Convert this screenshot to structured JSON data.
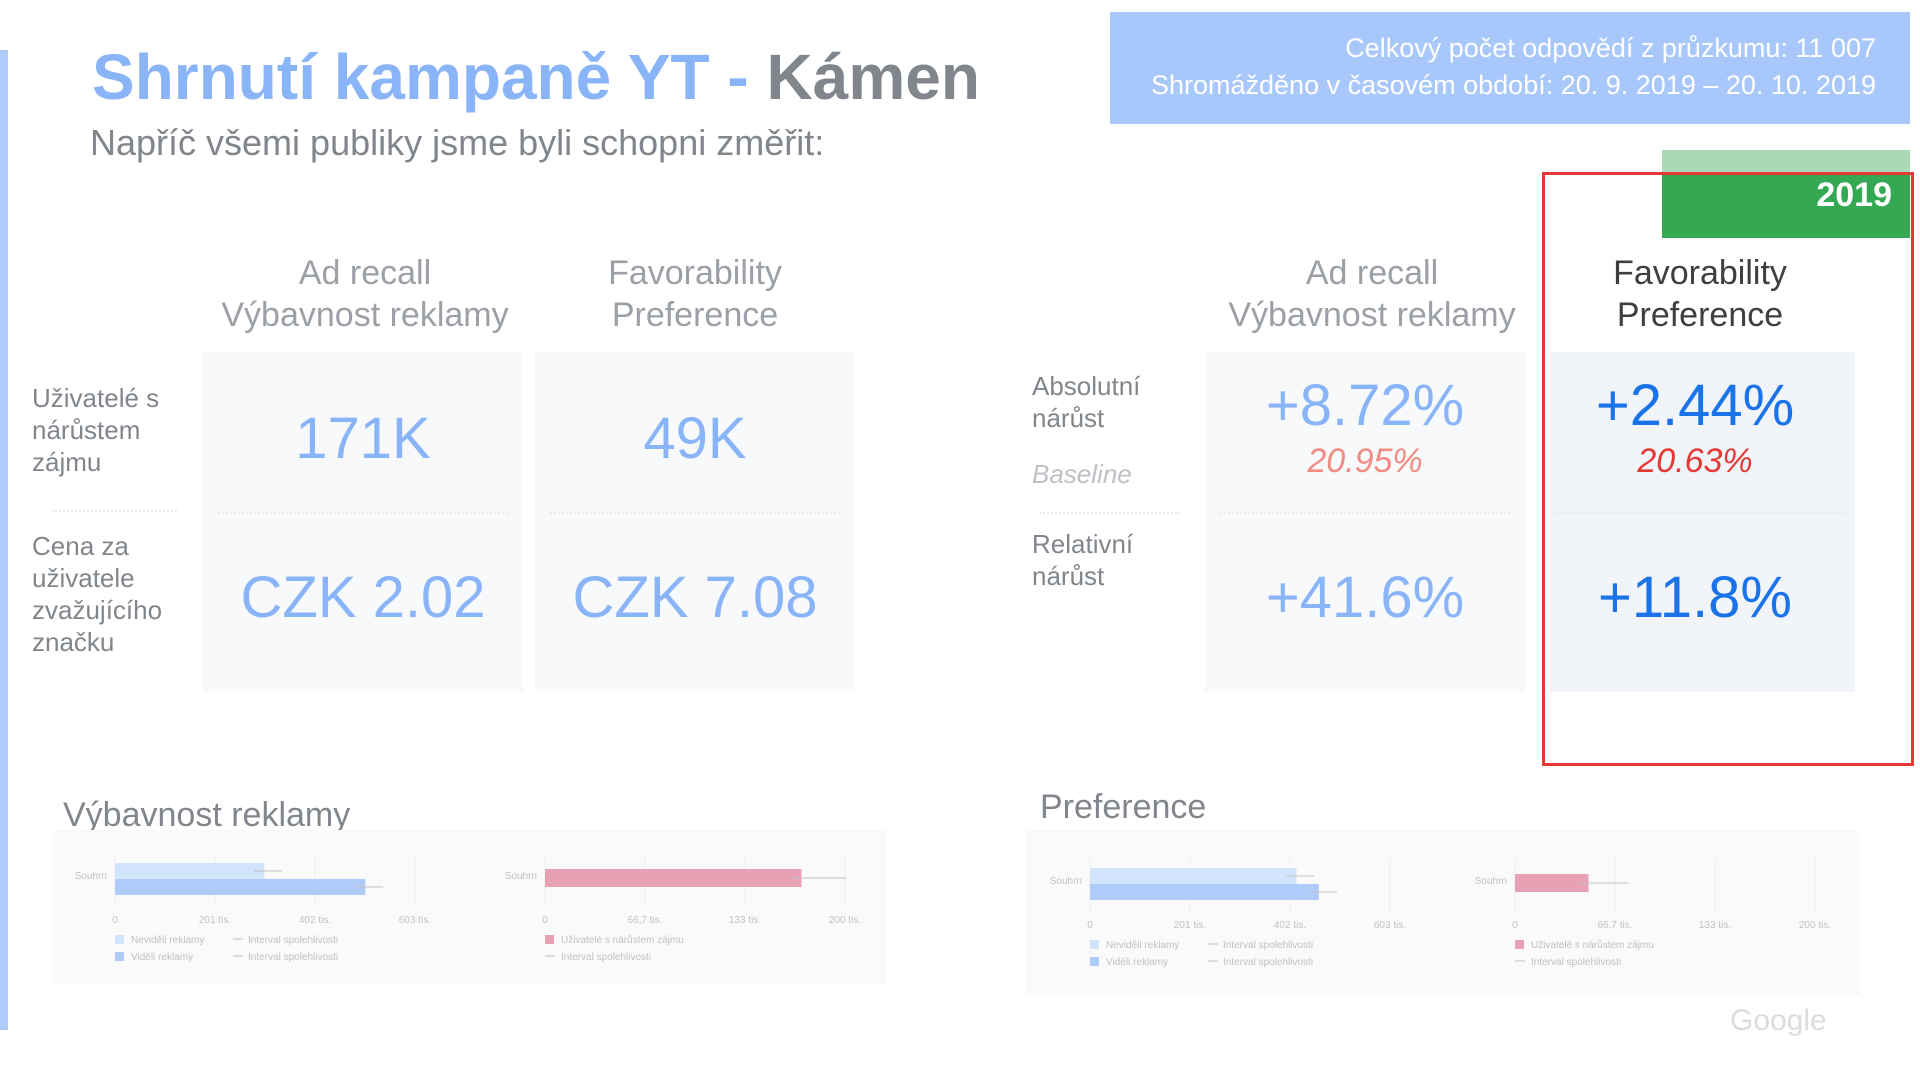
{
  "header": {
    "title_part1": "Shrnutí kampaně YT -",
    "title_part2": "Kámen",
    "subtitle": "Napříč všemi publiky jsme byli schopni změřit:"
  },
  "info": {
    "line1": "Celkový počet odpovědí z průzkumu: 11 007",
    "line2": "Shromážděno v časovém období: 20. 9. 2019 – 20. 10. 2019"
  },
  "year_tab": "2019",
  "left_table": {
    "col1": {
      "line1": "Ad recall",
      "line2": "Výbavnost reklamy"
    },
    "col2": {
      "line1": "Favorability",
      "line2": "Preference"
    },
    "row1_label": [
      "Uživatelé s",
      "nárůstem",
      "zájmu"
    ],
    "row2_label": [
      "Cena za",
      "uživatele",
      "zvažujícího",
      "značku"
    ],
    "row1_values": [
      "171K",
      "49K"
    ],
    "row2_values": [
      "CZK 2.02",
      "CZK 7.08"
    ]
  },
  "right_table": {
    "col1": {
      "line1": "Ad recall",
      "line2": "Výbavnost reklamy"
    },
    "col2": {
      "line1": "Favorability",
      "line2": "Preference"
    },
    "row1_label": [
      "Absolutní",
      "nárůst"
    ],
    "baseline_label": "Baseline",
    "row2_label": [
      "Relativní",
      "nárůst"
    ],
    "abs_values": [
      "+8.72%",
      "+2.44%"
    ],
    "baseline_values": [
      "20.95%",
      "20.63%"
    ],
    "rel_values": [
      "+41.6%",
      "+11.8%"
    ]
  },
  "sections": {
    "left": "Výbavnost reklamy",
    "right": "Preference"
  },
  "colors": {
    "not_seen": "#d2e3fc",
    "seen": "#aecbfa",
    "interest": "#e8a0b4",
    "ci": "#bdc1c6"
  },
  "chart_data": [
    {
      "type": "bar",
      "orientation": "horizontal",
      "categories": [
        "Souhrn"
      ],
      "series": [
        {
          "name": "Neviděli reklamy",
          "values": [
            300
          ]
        },
        {
          "name": "Viděli reklamy",
          "values": [
            503
          ]
        }
      ],
      "ci_labels": [
        "Interval spolehlivosti",
        "Interval spolehlivosti"
      ],
      "xticks": [
        "0",
        "201 tis.",
        "402 tis.",
        "603 tis."
      ],
      "xlim": [
        0,
        603
      ]
    },
    {
      "type": "bar",
      "orientation": "horizontal",
      "categories": [
        "Souhrn"
      ],
      "series": [
        {
          "name": "Uživatelé s nárůstem zájmu",
          "values": [
            171
          ]
        }
      ],
      "ci_labels": [
        "Interval spolehlivosti"
      ],
      "xticks": [
        "0",
        "66,7 tis.",
        "133 tis.",
        "200 tis."
      ],
      "xlim": [
        0,
        200
      ]
    },
    {
      "type": "bar",
      "orientation": "horizontal",
      "categories": [
        "Souhrn"
      ],
      "series": [
        {
          "name": "Neviděli reklamy",
          "values": [
            415
          ]
        },
        {
          "name": "Viděli reklamy",
          "values": [
            460
          ]
        }
      ],
      "ci_labels": [
        "Interval spolehlivosti",
        "Interval spolehlivosti"
      ],
      "xticks": [
        "0",
        "201 tis.",
        "402 tis.",
        "603 tis."
      ],
      "xlim": [
        0,
        603
      ]
    },
    {
      "type": "bar",
      "orientation": "horizontal",
      "categories": [
        "Souhrn"
      ],
      "series": [
        {
          "name": "Uživatelé s nárůstem zájmu",
          "values": [
            49
          ]
        }
      ],
      "ci_labels": [
        "Interval spolehlivosti"
      ],
      "xticks": [
        "0",
        "66,7 tis.",
        "133 tis.",
        "200 tis."
      ],
      "xlim": [
        0,
        200
      ]
    }
  ],
  "logo": "Google"
}
